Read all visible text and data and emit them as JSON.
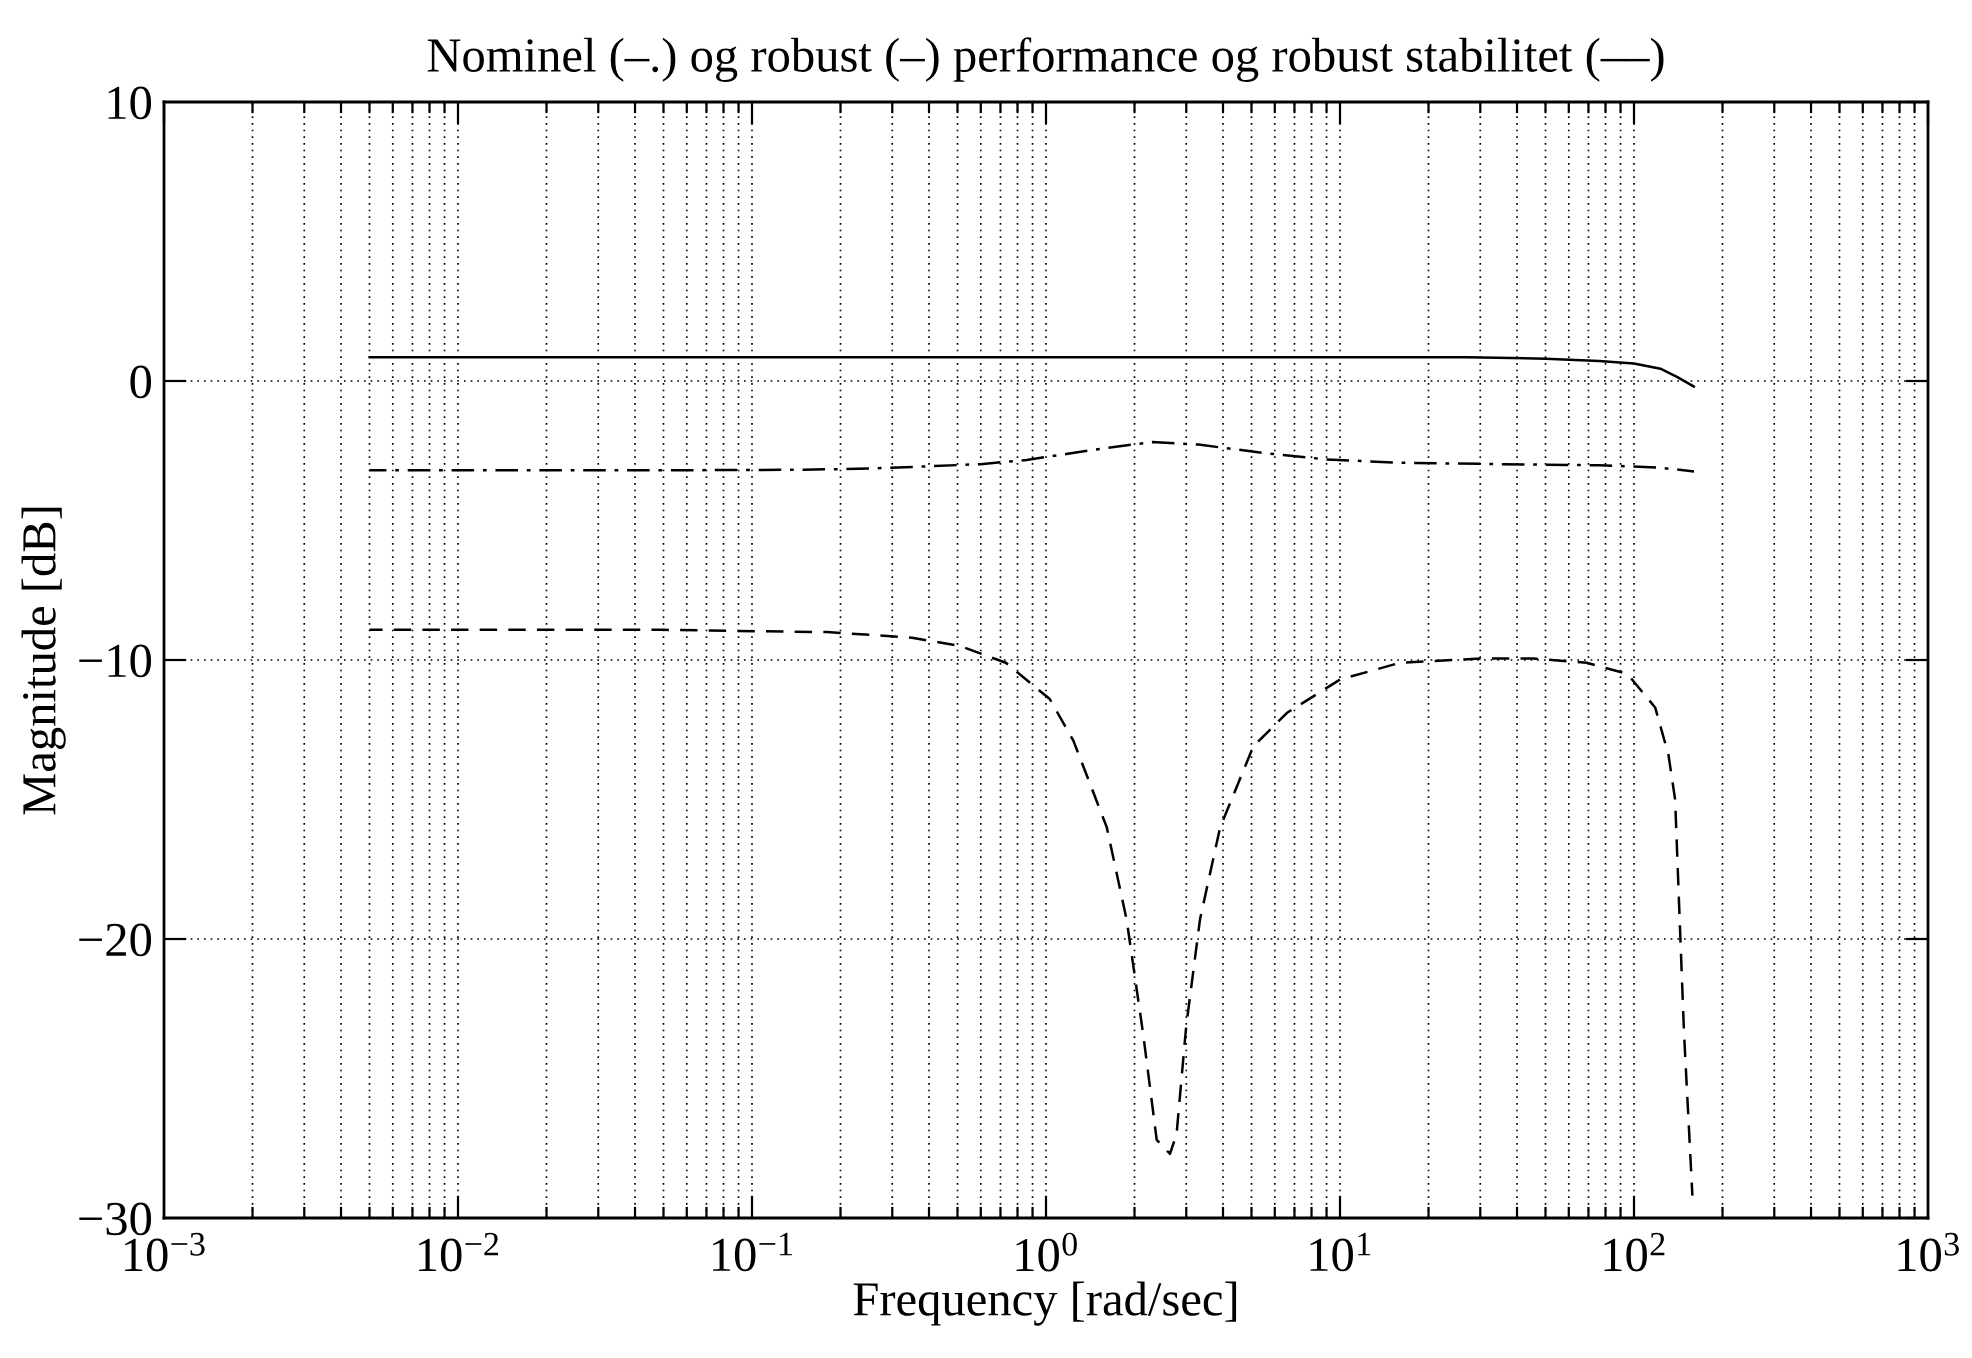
{
  "chart_data": {
    "type": "line",
    "title": "Nominel (–.) og robust (–) performance og robust stabilitet (––)",
    "xlabel": "Frequency [rad/sec]",
    "ylabel": "Magnitude [dB]",
    "log": "x",
    "grid": true,
    "marker": "none",
    "xlim": [
      0.001,
      1000
    ],
    "xticks": [
      {
        "value": 0.001,
        "label": "10$^{−3}$"
      },
      {
        "value": 0.01,
        "label": "10$^{−2}$"
      },
      {
        "value": 0.1,
        "label": "10$^{−1}$"
      },
      {
        "value": 1,
        "label": "10$^{0}$"
      },
      {
        "value": 10,
        "label": "10$^{1}$"
      },
      {
        "value": 100,
        "label": "10$^{2}$"
      },
      {
        "value": 1000,
        "label": "10$^{3}$"
      }
    ],
    "ylim": [
      -30,
      10
    ],
    "yticks": [
      -30,
      -20,
      -10,
      0,
      10
    ],
    "series": [
      {
        "color": "#000000",
        "line_style": "solid",
        "x": [
          0.005,
          0.1,
          1,
          10,
          27,
          50,
          76,
          100,
          123,
          140,
          160
        ],
        "values": [
          0.85,
          0.85,
          0.85,
          0.85,
          0.85,
          0.8,
          0.72,
          0.63,
          0.44,
          0.15,
          -0.2
        ]
      },
      {
        "color": "#000000",
        "line_style": "dashdot",
        "x": [
          0.005,
          0.05,
          0.15,
          0.25,
          0.37,
          0.6,
          0.86,
          1.2,
          1.6,
          2.3,
          3.3,
          5.6,
          9,
          16,
          35,
          76,
          120,
          160
        ],
        "values": [
          -3.2,
          -3.2,
          -3.18,
          -3.14,
          -3.07,
          -2.98,
          -2.83,
          -2.6,
          -2.4,
          -2.19,
          -2.28,
          -2.59,
          -2.81,
          -2.93,
          -2.98,
          -3.02,
          -3.1,
          -3.24
        ]
      },
      {
        "color": "#000000",
        "line_style": "dashed",
        "x": [
          0.005,
          0.05,
          0.107,
          0.18,
          0.35,
          0.51,
          0.73,
          1.03,
          1.24,
          1.61,
          1.88,
          2.14,
          2.38,
          2.64,
          2.78,
          3.0,
          3.34,
          3.91,
          5.07,
          6.59,
          10,
          16,
          30,
          45.5,
          69,
          95,
          118,
          131,
          138,
          143,
          148,
          158
        ],
        "values": [
          -8.92,
          -8.92,
          -8.97,
          -9.0,
          -9.2,
          -9.5,
          -10.1,
          -11.4,
          -12.9,
          -16.0,
          -19.3,
          -23.4,
          -27.2,
          -27.7,
          -27.0,
          -23.1,
          -19.3,
          -16.0,
          -13.1,
          -11.9,
          -10.7,
          -10.1,
          -9.95,
          -9.95,
          -10.1,
          -10.5,
          -11.7,
          -13.4,
          -15.0,
          -19.3,
          -23.4,
          -29.2
        ]
      }
    ]
  }
}
